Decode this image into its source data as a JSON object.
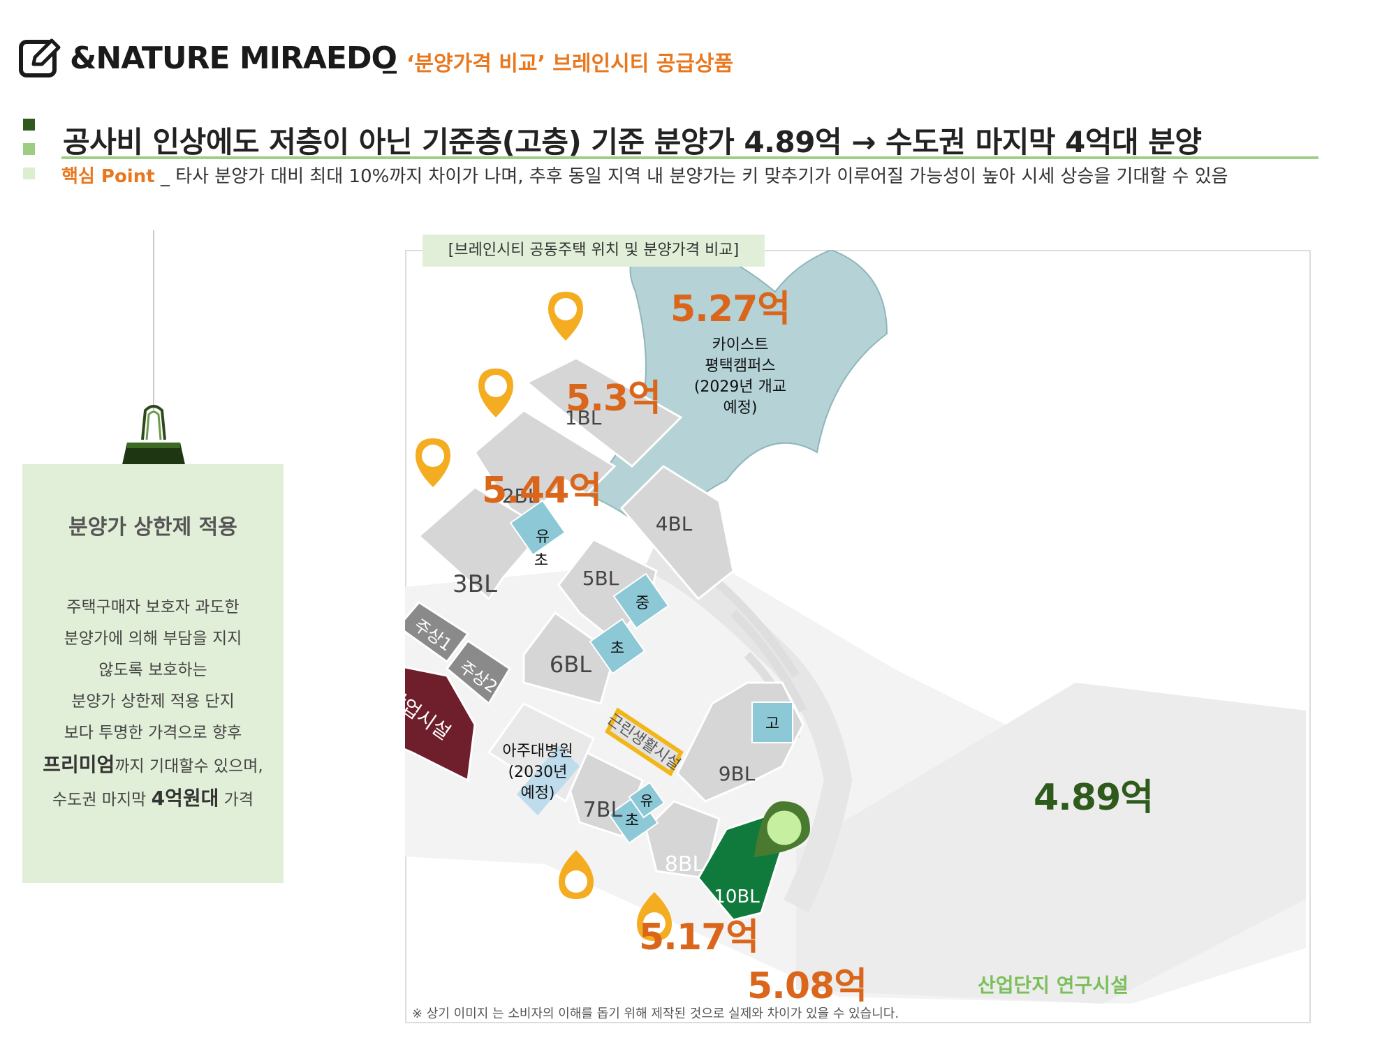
{
  "header": {
    "brand": "&NATURE MIRAEDO",
    "separator": "_",
    "subtitle": "‘분양가격 비교’ 브레인시티 공급상품",
    "icon": "edit-icon"
  },
  "headline": {
    "title": "공사비 인상에도 저층이 아닌 기준층(고층) 기준 분양가 4.89억 → 수도권 마지막 4억대 분양",
    "key_point_label": "핵심 Point",
    "key_point_text": "_ 타사 분양가 대비 최대 10%까지 차이가 나며, 추후 동일 지역 내 분양가는 키 맞추기가 이루어질 가능성이 높아 시세 상승을 기대할 수 있음"
  },
  "side_card": {
    "title": "분양가 상한제 적용",
    "lines": [
      "주택구매자 보호자 과도한",
      "분양가에 의해 부담을 지지",
      "않도록 보호하는",
      "분양가 상한제 적용 단지",
      "보다 투명한 가격으로 향후"
    ],
    "premium_bold": "프리미엄",
    "premium_rest": "까지 기대할수 있으며,",
    "last_prefix": "수도권 마지막 ",
    "last_bold": "4억원대",
    "last_suffix": " 가격"
  },
  "map": {
    "caption": "[브레인시티 공동주택 위치 및 분양가격 비교]",
    "blocks": [
      "1BL",
      "2BL",
      "3BL",
      "4BL",
      "5BL",
      "6BL",
      "7BL",
      "8BL",
      "9BL",
      "10BL"
    ],
    "schools": [
      "유",
      "초",
      "중",
      "초",
      "고",
      "유",
      "초"
    ],
    "facilities": {
      "campus": [
        "카이스트",
        "평택캠퍼스",
        "(2029년 개교",
        "예정)"
      ],
      "hospital": [
        "아주대병원",
        "(2030년",
        "예정)"
      ],
      "commercial": "상업시설",
      "mixed1": "주상1",
      "mixed2": "주상2",
      "neighborhood": "근린생활시설",
      "research": "산업단지 연구시설"
    },
    "prices": [
      {
        "block": "1BL",
        "label": "5.27억"
      },
      {
        "block": "2BL",
        "label": "5.3억"
      },
      {
        "block": "3BL",
        "label": "5.44억"
      },
      {
        "block": "7BL",
        "label": "5.17억"
      },
      {
        "block": "8BL",
        "label": "5.08억"
      },
      {
        "block": "10BL",
        "label": "4.89억"
      }
    ],
    "colors": {
      "price": "#d9661b",
      "highlight": "#2e5a1c",
      "block": "#d6d6d6",
      "school": "#8cc8d6",
      "commercial": "#6e1f2b",
      "campus": "#b5d2d6",
      "subject": "#0f7a3b"
    },
    "disclaimer": "※ 상기 이미지 는 소비자의 이해를 돕기 위해 제작된 것으로 실제와 차이가 있을 수 있습니다."
  }
}
